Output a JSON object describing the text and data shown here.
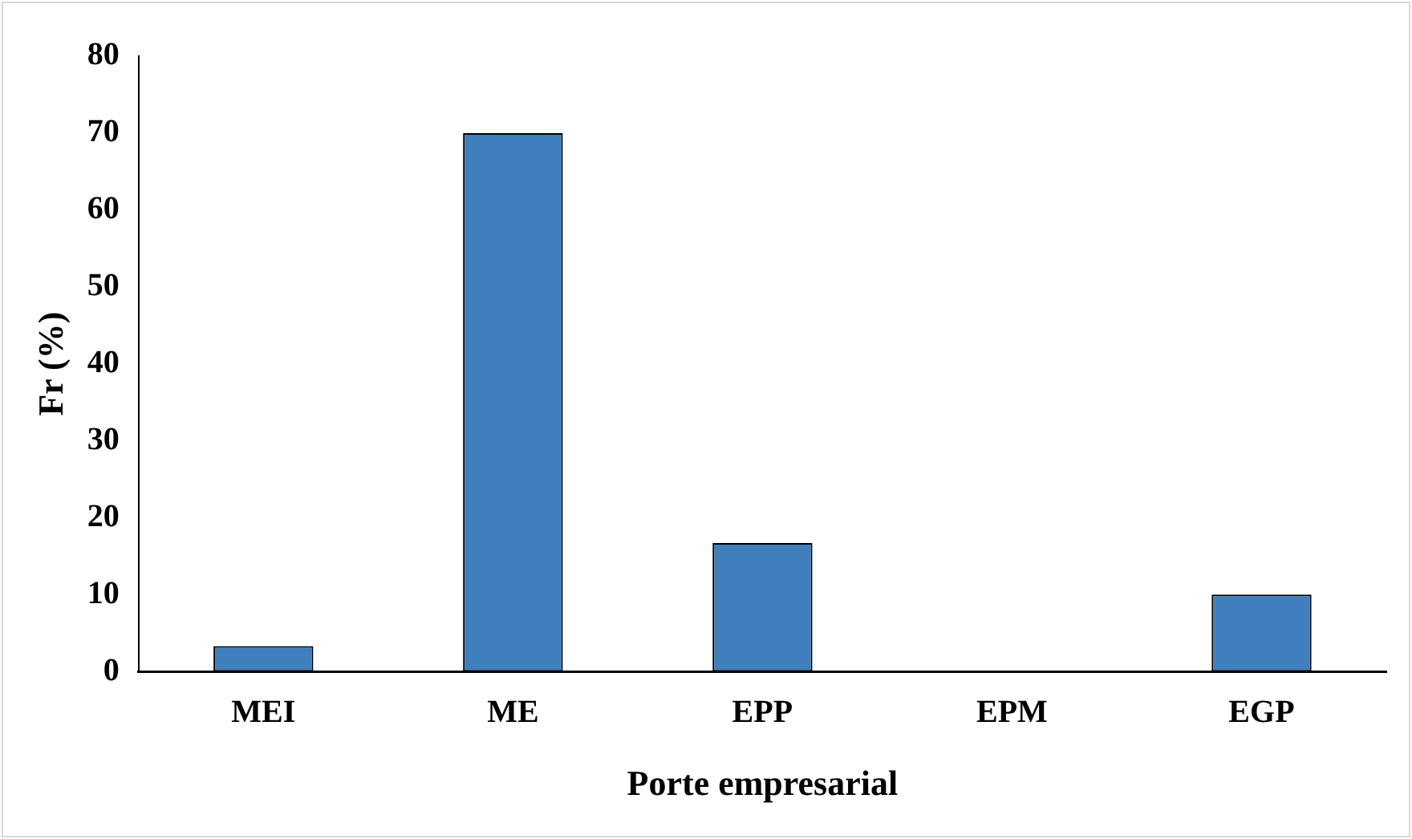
{
  "chart_data": {
    "type": "bar",
    "xlabel": "Porte empresarial",
    "ylabel": "Fr (%)",
    "categories": [
      "MEI",
      "ME",
      "EPP",
      "EPM",
      "EGP"
    ],
    "values": [
      3.3,
      70,
      16.7,
      0,
      10
    ],
    "color": "#3f7fbd",
    "ylim": [
      0,
      80
    ],
    "yticks": [
      0,
      10,
      20,
      30,
      40,
      50,
      60,
      70,
      80
    ],
    "grid": false,
    "legend": false
  }
}
